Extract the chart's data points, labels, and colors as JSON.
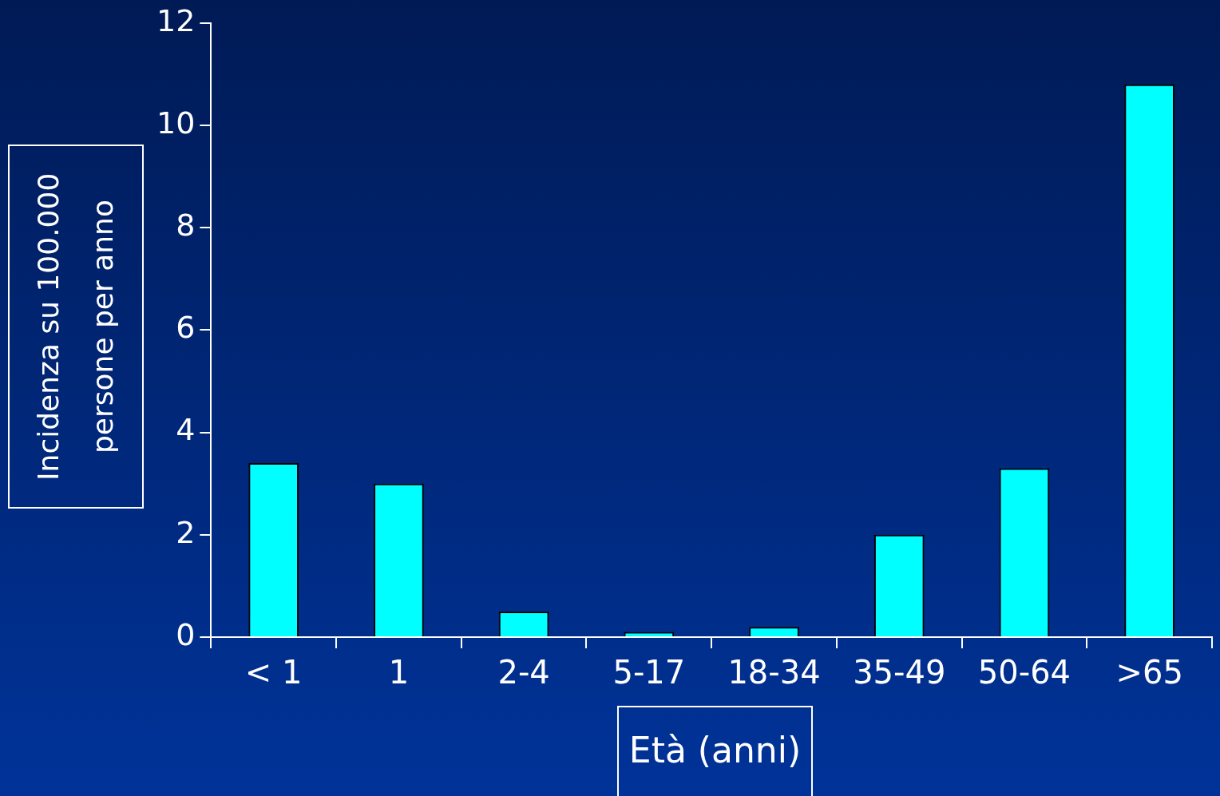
{
  "chart_data": {
    "type": "bar",
    "xlabel": "Età (anni)",
    "ylabel": "Incidenza su 100.000 persone per anno",
    "categories": [
      "< 1",
      "1",
      "2-4",
      "5-17",
      "18-34",
      "35-49",
      "50-64",
      ">65"
    ],
    "values": [
      3.4,
      3.0,
      0.5,
      0.1,
      0.2,
      2.0,
      3.3,
      10.8
    ],
    "color": "#00ffff",
    "ylim": [
      0,
      12
    ],
    "yticks": [
      0,
      2,
      4,
      6,
      8,
      10,
      12
    ],
    "grid": false,
    "legend": false
  }
}
